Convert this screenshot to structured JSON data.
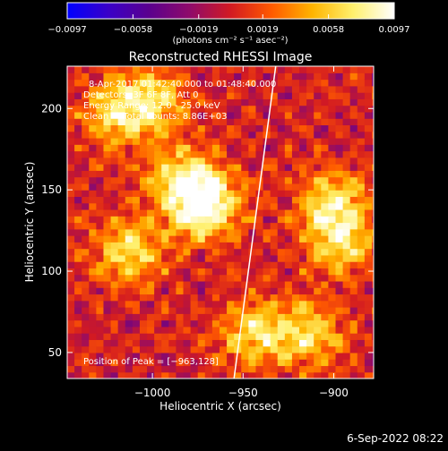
{
  "chart_data": {
    "type": "heatmap",
    "title": "Reconstructed RHESSI Image",
    "xlabel": "Heliocentric X (arcsec)",
    "ylabel": "Heliocentric Y (arcsec)",
    "xlim": [
      -1047,
      -878
    ],
    "ylim": [
      34,
      226
    ],
    "x_ticks": [
      -1000,
      -950,
      -900
    ],
    "x_tick_labels": [
      "−1000",
      "−950",
      "−900"
    ],
    "y_ticks": [
      50,
      100,
      150,
      200
    ],
    "y_tick_labels": [
      "50",
      "100",
      "150",
      "200"
    ],
    "grid": false,
    "colorbar": {
      "range": [
        -0.0097,
        0.0097
      ],
      "tick_values": [
        -0.0097,
        -0.0058,
        -0.0019,
        0.0019,
        0.0058,
        0.0097
      ],
      "tick_labels": [
        "−0.0097",
        "−0.0058",
        "−0.0019",
        "0.0019",
        "0.0058",
        "0.0097"
      ],
      "unit_label": "(photons cm⁻² s⁻¹ asec⁻²)",
      "colors": [
        "#0000ff",
        "#3a00c8",
        "#5a008e",
        "#8f0b6a",
        "#d21a22",
        "#ff5a00",
        "#ffb400",
        "#fff06e",
        "#ffffff"
      ]
    },
    "peak": {
      "x": -963,
      "y": 128
    },
    "limb_line": [
      [
        -955,
        34
      ],
      [
        -932,
        226
      ]
    ],
    "bright_sources": [
      {
        "x": -973,
        "y": 138,
        "value": 0.0095
      },
      {
        "x": -985,
        "y": 155,
        "value": 0.007
      },
      {
        "x": -1015,
        "y": 110,
        "value": 0.0065
      },
      {
        "x": -902,
        "y": 140,
        "value": 0.007
      },
      {
        "x": -898,
        "y": 115,
        "value": 0.006
      },
      {
        "x": -1020,
        "y": 195,
        "value": 0.007
      },
      {
        "x": -1000,
        "y": 205,
        "value": 0.0055
      },
      {
        "x": -945,
        "y": 60,
        "value": 0.0065
      },
      {
        "x": -915,
        "y": 60,
        "value": 0.006
      }
    ]
  },
  "annotations": {
    "time_range": "8-Apr-2017 01:42:40.000 to 01:48:40.000",
    "detectors": "Detectors: 3F 6F 8F, Att 0",
    "energy": "Energy Range: 12.0 - 25.0 keV",
    "clean": "Clean     Total counts: 8.86E+03",
    "peak_text": "Position of Peak = [−963,128]"
  },
  "footer": {
    "date": "6-Sep-2022 08:22"
  }
}
